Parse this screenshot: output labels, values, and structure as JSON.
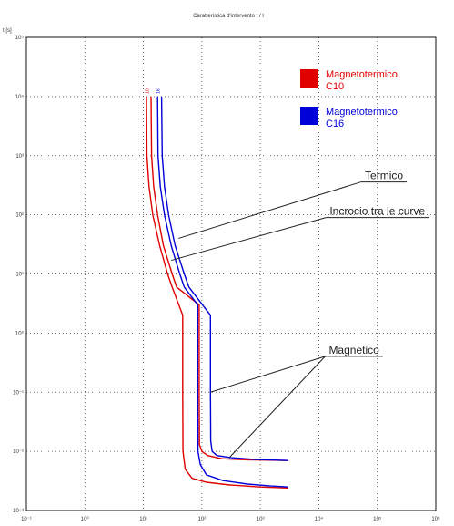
{
  "chart_data": {
    "type": "line",
    "title": "Caratteristica d'intervento t / I",
    "ylabel": "t [s]",
    "xlabel": "",
    "x_scale": "log",
    "y_scale": "log",
    "xlim": [
      0.1,
      1000000
    ],
    "ylim": [
      0.001,
      100000
    ],
    "grid": true,
    "x_ticks": [
      0.1,
      1,
      10,
      100,
      1000,
      10000,
      100000,
      1000000
    ],
    "y_ticks": [
      0.001,
      0.01,
      0.1,
      1,
      10,
      100,
      1000,
      10000,
      100000
    ],
    "x_tick_labels": [
      "10⁻¹",
      "10⁰",
      "10¹",
      "10²",
      "10³",
      "10⁴",
      "10⁵",
      "10⁶"
    ],
    "y_tick_labels": [
      "10⁻³",
      "10⁻²",
      "10⁻¹",
      "10⁰",
      "10¹",
      "10²",
      "10³",
      "10⁴",
      "10⁵"
    ],
    "legend_position": "top-right",
    "series": [
      {
        "name": "Magnetotermico C10",
        "legend_lines": [
          "Magnetotermico",
          "C10"
        ],
        "color": "#e00000",
        "curve_tag": "10",
        "curves": [
          {
            "x": [
              11.3,
              11.5,
              12.5,
              14.5,
              19,
              26,
              31,
              47,
              47,
              47,
              47.5,
              52,
              68,
              120,
              300,
              1000,
              3000
            ],
            "y": [
              10000,
              1000,
              300,
              100,
              30,
              10,
              6,
              2,
              1,
              0.1,
              0.01,
              0.005,
              0.0035,
              0.003,
              0.0027,
              0.0025,
              0.0024
            ]
          },
          {
            "x": [
              13.5,
              13.8,
              15,
              17.5,
              22,
              31,
              37,
              90,
              90,
              90,
              91,
              100,
              125,
              220,
              600,
              1500,
              3000
            ],
            "y": [
              10000,
              1000,
              300,
              100,
              30,
              10,
              6,
              3,
              1,
              0.1,
              0.013,
              0.01,
              0.0085,
              0.0075,
              0.0072,
              0.0071,
              0.007
            ]
          }
        ]
      },
      {
        "name": "Magnetotermico C16",
        "legend_lines": [
          "Magnetotermico",
          "C16"
        ],
        "color": "#0000d8",
        "curve_tag": "16",
        "curves": [
          {
            "x": [
              17.5,
              17.8,
              19.5,
              23,
              30,
              42,
              50,
              85,
              85,
              85,
              86,
              94,
              120,
              230,
              600,
              1500,
              3000
            ],
            "y": [
              10000,
              1000,
              300,
              100,
              30,
              10,
              6,
              3,
              1,
              0.1,
              0.01,
              0.006,
              0.004,
              0.0032,
              0.0028,
              0.0026,
              0.0025
            ]
          },
          {
            "x": [
              20.5,
              21,
              23,
              27,
              35,
              50,
              60,
              140,
              140,
              140,
              142,
              150,
              180,
              320,
              800,
              2000,
              3000
            ],
            "y": [
              10000,
              1000,
              300,
              100,
              30,
              10,
              6,
              2,
              1,
              0.1,
              0.015,
              0.01,
              0.0085,
              0.0078,
              0.0073,
              0.0071,
              0.007
            ]
          }
        ]
      }
    ],
    "annotations": [
      {
        "text": "Termico",
        "label_x": 130000,
        "label_y": 400,
        "targets": [
          [
            40,
            40
          ]
        ]
      },
      {
        "text": "Incrocio tra le curve",
        "label_x": 100000,
        "label_y": 100,
        "targets": [
          [
            30,
            17
          ]
        ]
      },
      {
        "text": "Magnetico",
        "label_x": 40000,
        "label_y": 0.45,
        "targets": [
          [
            140,
            0.1
          ],
          [
            300,
            0.008
          ]
        ]
      }
    ]
  }
}
